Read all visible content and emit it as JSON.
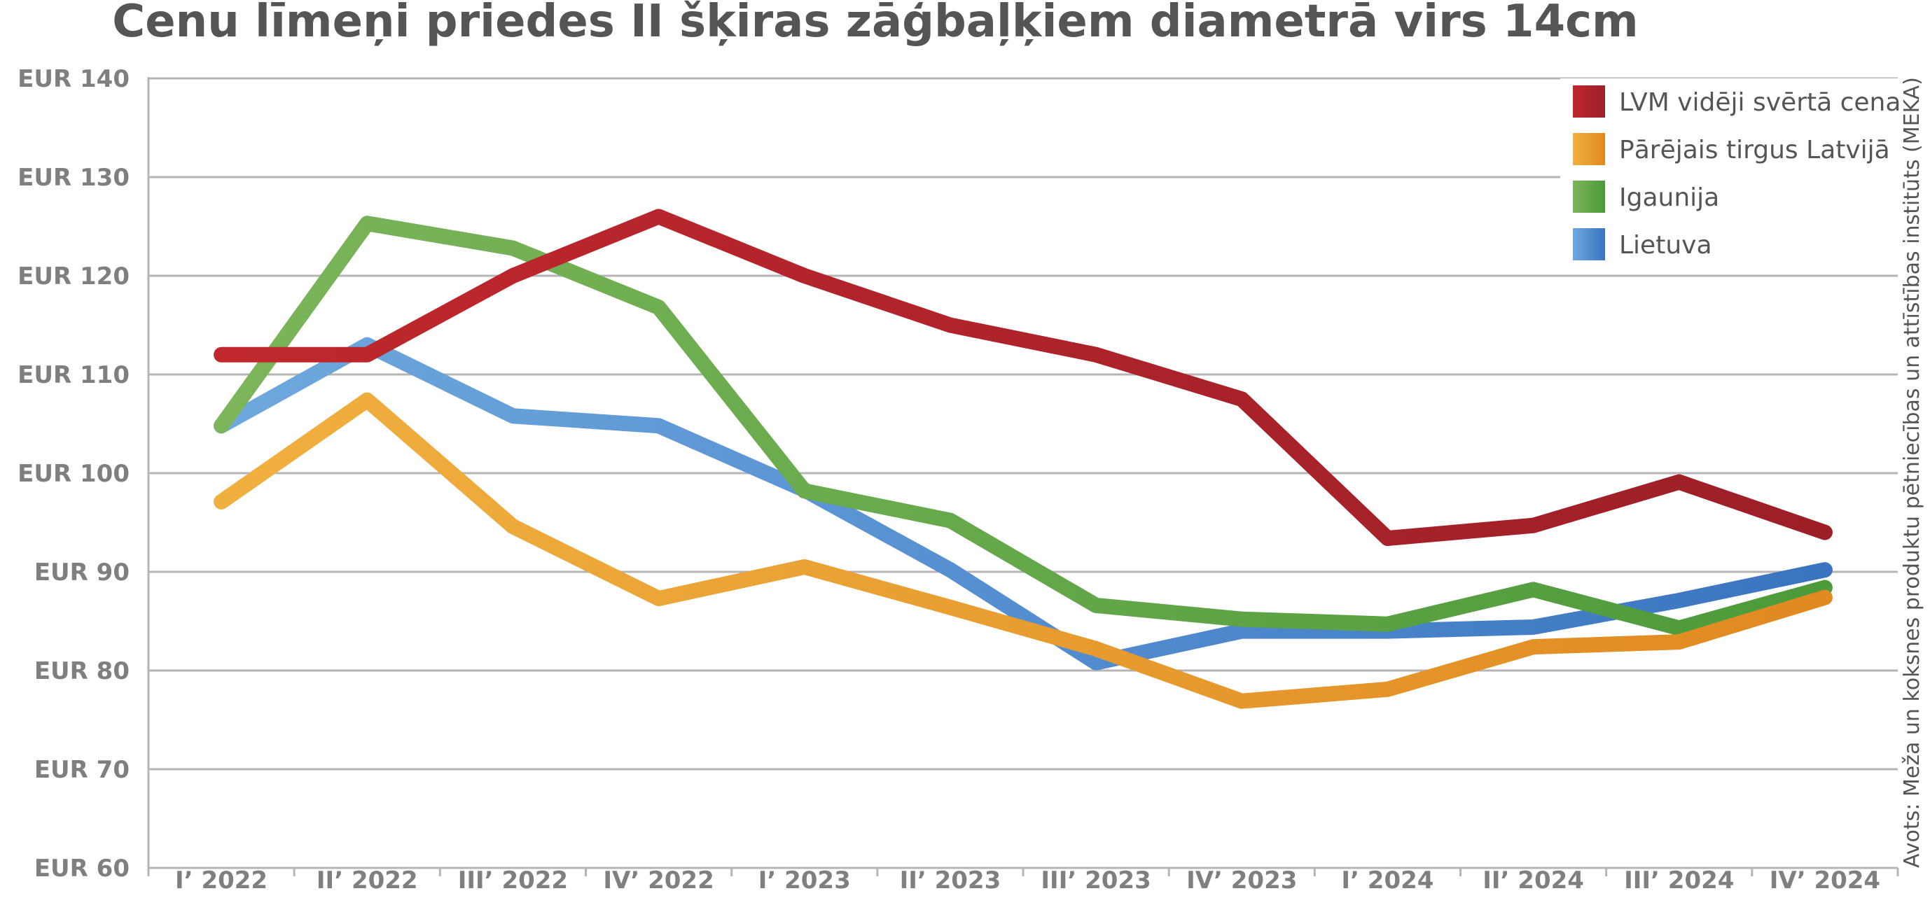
{
  "chart_data": {
    "type": "line",
    "title": "Cenu līmeņi priedes II šķiras zāģbaļķiem diametrā virs 14cm",
    "source": "Avots: Meža un koksnes produktu pētniecības un attīstības institūts (MEKA)",
    "categories": [
      "I’ 2022",
      "II’ 2022",
      "III’ 2022",
      "IV’ 2022",
      "I’ 2023",
      "II’ 2023",
      "III’ 2023",
      "IV’ 2023",
      "I’ 2024",
      "II’ 2024",
      "III’ 2024",
      "IV’ 2024"
    ],
    "y_ticks": [
      60,
      70,
      80,
      90,
      100,
      110,
      120,
      130,
      140
    ],
    "y_tick_labels": [
      "EUR 60",
      "EUR 70",
      "EUR 80",
      "EUR 90",
      "EUR 100",
      "EUR 110",
      "EUR 120",
      "EUR 130",
      "EUR 140"
    ],
    "ylim": [
      60,
      140
    ],
    "grid": true,
    "legend_position": "top-right",
    "series": [
      {
        "name": "LVM vidēji svērtā cena",
        "color": "#c0282d",
        "color_dark": "#9c1f27",
        "values": [
          112,
          112,
          120,
          126,
          120,
          115,
          112,
          107.5,
          93.4,
          94.7,
          99.1,
          94
        ]
      },
      {
        "name": "Pārējais tirgus Latvijā",
        "color": "#f0b040",
        "color_dark": "#e08a20",
        "values": [
          97.1,
          107.4,
          94.6,
          87.3,
          90.5,
          86.4,
          82.2,
          76.9,
          78.1,
          82.4,
          82.9,
          87.4
        ]
      },
      {
        "name": "Igaunija",
        "color": "#7cb55a",
        "color_dark": "#4c9a3a",
        "values": [
          104.8,
          125.3,
          122.8,
          116.8,
          98.2,
          95.2,
          86.6,
          85.2,
          84.7,
          88.2,
          84.3,
          88.4
        ]
      },
      {
        "name": "Lietuva",
        "color": "#6fa8de",
        "color_dark": "#3a74c0",
        "values": [
          104.8,
          113,
          105.8,
          104.8,
          98.3,
          90.2,
          80.8,
          84,
          84,
          84.4,
          87.1,
          90.2
        ]
      }
    ]
  }
}
